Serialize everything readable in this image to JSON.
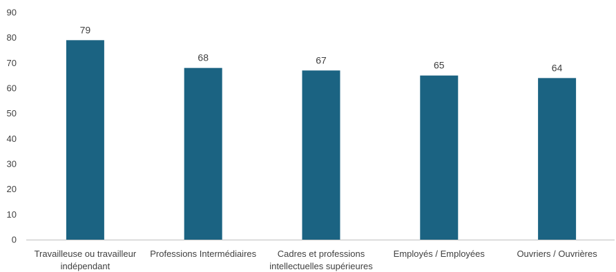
{
  "chart_data": {
    "type": "bar",
    "title": "",
    "xlabel": "",
    "ylabel": "",
    "categories": [
      [
        "Travailleuse ou travailleur",
        "indépendant"
      ],
      [
        "Professions Intermédiaires"
      ],
      [
        "Cadres et professions",
        "intellectuelles supérieures"
      ],
      [
        "Employés / Employées"
      ],
      [
        "Ouvriers / Ouvrières"
      ]
    ],
    "values": [
      79,
      68,
      67,
      65,
      64
    ],
    "ylim": [
      0,
      90
    ],
    "yticks": [
      "0",
      "10",
      "20",
      "30",
      "40",
      "50",
      "60",
      "70",
      "80",
      "90"
    ],
    "grid": false,
    "legend": "none",
    "bar_color": "#1b6382",
    "axis_color": "#bfbfbf",
    "text_color": "#404040"
  }
}
